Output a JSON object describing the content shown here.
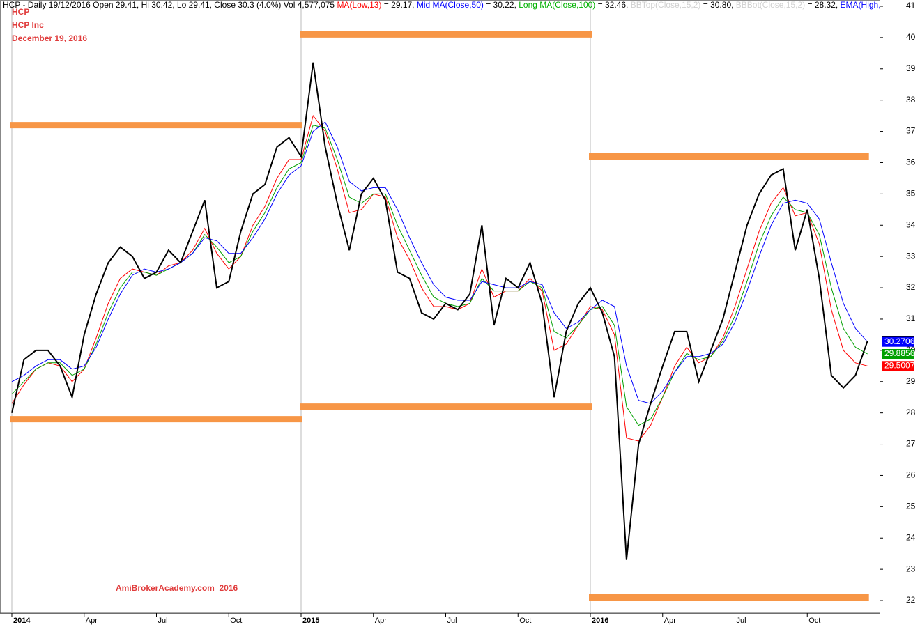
{
  "chart_data": {
    "type": "line",
    "header": [
      {
        "text": "HCP - Daily 19/12/2016 Open 29.41, Hi 30.42, Lo 29.41, Close 30.3 (4.0%) Vol 4,577,075 ",
        "color": "#000000"
      },
      {
        "text": "MA(Low,13)",
        "color": "#ff0000"
      },
      {
        "text": " = 29.17, ",
        "color": "#000000"
      },
      {
        "text": "Mid MA(Close,50)",
        "color": "#0000ff"
      },
      {
        "text": " = 30.22, ",
        "color": "#000000"
      },
      {
        "text": "Long MA(Close,100)",
        "color": "#00b000"
      },
      {
        "text": " = 32.46, ",
        "color": "#000000"
      },
      {
        "text": "BBTop(Close,15,2)",
        "color": "#d0d0d0"
      },
      {
        "text": " = 30.80, ",
        "color": "#000000"
      },
      {
        "text": "BBBot(Close,15,2)",
        "color": "#d0d0d0"
      },
      {
        "text": " = 28.32, ",
        "color": "#000000"
      },
      {
        "text": "EMA(High,",
        "color": "#0000ff"
      }
    ],
    "titles": [
      "HCP",
      "HCP Inc",
      "December 19, 2016"
    ],
    "title_color": "#e03c3c",
    "watermark": "AmiBrokerAcademy.com  2016",
    "categories": [
      "2014",
      null,
      null,
      null,
      null,
      null,
      "Apr",
      null,
      null,
      null,
      null,
      null,
      "Jul",
      null,
      null,
      null,
      null,
      null,
      "Oct",
      null,
      null,
      null,
      null,
      null,
      "2015",
      null,
      null,
      null,
      null,
      null,
      "Apr",
      null,
      null,
      null,
      null,
      null,
      "Jul",
      null,
      null,
      null,
      null,
      null,
      "Oct",
      null,
      null,
      null,
      null,
      null,
      "2016",
      null,
      null,
      null,
      null,
      null,
      "Apr",
      null,
      null,
      null,
      null,
      null,
      "Jul",
      null,
      null,
      null,
      null,
      null,
      "Oct",
      null,
      null,
      null,
      null,
      null
    ],
    "series": [
      {
        "color": "#000000",
        "values": [
          28.0,
          29.7,
          30.0,
          30.0,
          29.5,
          28.5,
          30.5,
          31.8,
          32.8,
          33.3,
          33.0,
          32.3,
          32.5,
          33.2,
          32.8,
          33.8,
          34.8,
          32.0,
          32.2,
          33.8,
          35.0,
          35.3,
          36.5,
          36.8,
          36.2,
          39.2,
          36.5,
          34.7,
          33.2,
          35.0,
          35.5,
          34.8,
          32.5,
          32.3,
          31.2,
          31.0,
          31.5,
          31.3,
          31.8,
          34.0,
          30.8,
          32.3,
          32.0,
          32.8,
          31.5,
          28.5,
          30.6,
          31.5,
          32.0,
          31.2,
          29.8,
          23.3,
          27.0,
          28.3,
          29.5,
          30.6,
          30.6,
          29.0,
          30.0,
          31.0,
          32.5,
          34.0,
          35.0,
          35.6,
          35.8,
          33.2,
          34.5,
          32.3,
          29.2,
          28.8,
          29.2,
          30.3
        ]
      },
      {
        "color": "#0000ff",
        "values": [
          29.0,
          29.2,
          29.5,
          29.7,
          29.7,
          29.4,
          29.5,
          30.1,
          31.0,
          31.8,
          32.4,
          32.6,
          32.5,
          32.6,
          32.8,
          33.1,
          33.6,
          33.5,
          33.1,
          33.1,
          33.6,
          34.2,
          35.0,
          35.6,
          35.9,
          37.0,
          37.3,
          36.5,
          35.4,
          35.1,
          35.2,
          35.2,
          34.5,
          33.6,
          32.8,
          32.1,
          31.7,
          31.6,
          31.6,
          32.2,
          32.1,
          32.0,
          32.0,
          32.2,
          32.1,
          31.2,
          30.7,
          30.9,
          31.3,
          31.6,
          31.4,
          29.5,
          28.4,
          28.3,
          28.7,
          29.3,
          29.8,
          29.8,
          29.9,
          30.2,
          30.9,
          31.9,
          33.0,
          34.0,
          34.7,
          34.8,
          34.7,
          34.2,
          32.8,
          31.5,
          30.7,
          30.2706
        ]
      },
      {
        "color": "#00a000",
        "values": [
          28.6,
          29.0,
          29.4,
          29.6,
          29.6,
          29.2,
          29.4,
          30.2,
          31.2,
          32.0,
          32.5,
          32.5,
          32.4,
          32.6,
          32.8,
          33.1,
          33.7,
          33.3,
          32.8,
          33.0,
          33.8,
          34.4,
          35.2,
          35.8,
          36.0,
          37.2,
          37.1,
          36.1,
          34.9,
          34.7,
          35.0,
          35.0,
          34.0,
          33.2,
          32.4,
          31.7,
          31.5,
          31.4,
          31.5,
          32.3,
          31.9,
          31.9,
          31.9,
          32.2,
          32.0,
          30.6,
          30.4,
          30.8,
          31.3,
          31.4,
          30.8,
          28.2,
          27.6,
          27.8,
          28.5,
          29.3,
          29.9,
          29.7,
          29.8,
          30.3,
          31.1,
          32.2,
          33.4,
          34.3,
          34.9,
          34.5,
          34.4,
          33.7,
          32.0,
          30.7,
          30.1,
          29.8856
        ]
      },
      {
        "color": "#ff0000",
        "values": [
          28.3,
          28.9,
          29.4,
          29.6,
          29.5,
          29.0,
          29.4,
          30.4,
          31.5,
          32.3,
          32.6,
          32.5,
          32.4,
          32.7,
          32.8,
          33.2,
          33.9,
          33.1,
          32.6,
          33.0,
          34.0,
          34.6,
          35.5,
          36.1,
          36.1,
          37.5,
          37.0,
          35.8,
          34.4,
          34.5,
          35.0,
          34.9,
          33.6,
          32.9,
          32.0,
          31.4,
          31.4,
          31.3,
          31.5,
          32.6,
          31.7,
          31.9,
          31.9,
          32.3,
          31.9,
          30.0,
          30.2,
          30.8,
          31.4,
          31.3,
          30.5,
          27.2,
          27.1,
          27.6,
          28.5,
          29.5,
          30.1,
          29.6,
          29.8,
          30.4,
          31.4,
          32.6,
          33.8,
          34.7,
          35.2,
          34.3,
          34.4,
          33.4,
          31.3,
          30.0,
          29.6,
          29.5007
        ]
      }
    ],
    "levels": [
      {
        "value": 37.2,
        "start": 0,
        "end": 24
      },
      {
        "value": 27.8,
        "start": 0,
        "end": 24
      },
      {
        "value": 40.1,
        "start": 24,
        "end": 48
      },
      {
        "value": 28.2,
        "start": 24,
        "end": 48
      },
      {
        "value": 36.2,
        "start": 48,
        "end": 71
      },
      {
        "value": 22.1,
        "start": 48,
        "end": 71
      }
    ],
    "level_color": "#f79646",
    "ylim": [
      21.6,
      41.2
    ],
    "yticks": [
      22,
      23,
      24,
      25,
      26,
      27,
      28,
      29,
      30,
      31,
      32,
      33,
      34,
      35,
      36,
      37,
      38,
      39,
      40,
      41
    ]
  }
}
